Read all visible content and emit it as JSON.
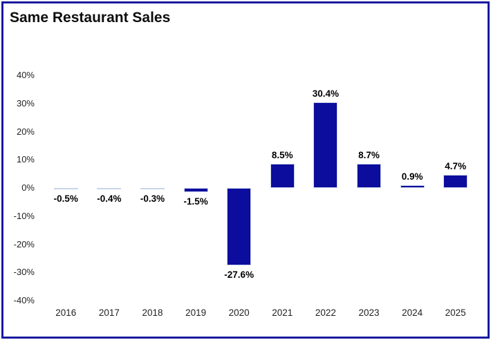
{
  "window": {
    "background_color": "#ffffff",
    "frame_border_color": "#1818a0"
  },
  "header": {
    "title": "Same Restaurant Sales"
  },
  "chart_data": {
    "type": "bar",
    "title": "Same Restaurant Sales",
    "xlabel": "",
    "ylabel": "",
    "categories": [
      "2016",
      "2017",
      "2018",
      "2019",
      "2020",
      "2021",
      "2022",
      "2023",
      "2024",
      "2025"
    ],
    "values": [
      -0.5,
      -0.4,
      -0.3,
      -1.5,
      -27.6,
      8.5,
      30.4,
      8.7,
      0.9,
      4.7
    ],
    "value_labels": [
      "-0.5%",
      "-0.4%",
      "-0.3%",
      "-1.5%",
      "-27.6%",
      "8.5%",
      "30.4%",
      "8.7%",
      "0.9%",
      "4.7%"
    ],
    "ylim": [
      -40,
      40
    ],
    "ytick_step": 10,
    "ytick_labels": [
      "40%",
      "30%",
      "20%",
      "10%",
      "0%",
      "-10%",
      "-20%",
      "-30%",
      "-40%"
    ],
    "grid": false,
    "legend": "none",
    "bar_color": "#0c0c9d",
    "bar_border_color": "#c9d5ea",
    "value_label_color": "#000000",
    "tick_label_color": "#1f1f1f"
  }
}
